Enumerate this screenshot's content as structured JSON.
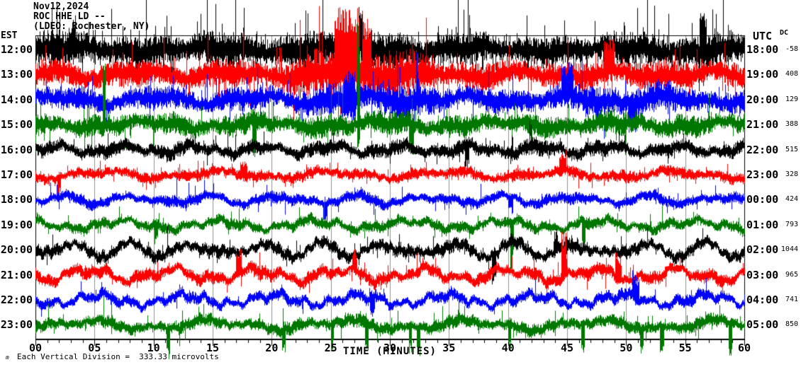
{
  "header": {
    "date": "Nov12,2024",
    "station": "ROC HHE LD --",
    "network": "(LDEO: Rochester, NY)"
  },
  "axes": {
    "left_label": "EST",
    "right_label": "UTC",
    "dc_label": "DC",
    "x_title": "TIME (MINUTES)",
    "x_ticks": [
      "00",
      "05",
      "10",
      "15",
      "20",
      "25",
      "30",
      "35",
      "40",
      "45",
      "50",
      "55",
      "60"
    ]
  },
  "footer": {
    "scale_note": "Each Vertical Division =  333.33 microvolts",
    "watermark": "m"
  },
  "chart_data": {
    "type": "line",
    "subtype": "helicorder-seismogram",
    "title": "ROC HHE LD -- Nov12,2024 (LDEO: Rochester, NY)",
    "xlabel": "TIME (MINUTES)",
    "x_range_minutes": [
      0,
      60
    ],
    "minutes_per_row": 60,
    "grid": "vertical gray lines every 5 minutes",
    "legend_position": "none",
    "microvolts_per_division": 333.33,
    "colors": {
      "grid": "#909090",
      "axis": "#000000",
      "trace_cycle": [
        "#000000",
        "#ff0000",
        "#0000ff",
        "#007700"
      ]
    },
    "rows": [
      {
        "est": "12:00",
        "utc": "18:00",
        "dc": "-58",
        "color": "#000000",
        "seed": 11,
        "amp": 20,
        "wander": 6,
        "spike_p": 0.1,
        "env": [
          1.1,
          1,
          0.95,
          1,
          0.95,
          1.15,
          1.1,
          1,
          0.85,
          0.9,
          1,
          0.95,
          1.05
        ],
        "spikes": [
          {
            "m": 27.5,
            "up": 60,
            "w": 0.2
          },
          {
            "m": 56.5,
            "up": 55,
            "w": 0.3
          },
          {
            "m": 3.2,
            "up": 45,
            "w": 0.2
          }
        ]
      },
      {
        "est": "13:00",
        "utc": "19:00",
        "dc": "408",
        "color": "#ff0000",
        "seed": 22,
        "amp": 16,
        "wander": 7,
        "spike_p": 0.07,
        "env": [
          1,
          1,
          1,
          1.05,
          1.1,
          1.8,
          2.0,
          1.1,
          1,
          1,
          1.2,
          1.05,
          1
        ],
        "spikes": [
          {
            "m": 25.8,
            "up": 95,
            "w": 0.5
          },
          {
            "m": 26.8,
            "up": 100,
            "w": 0.6
          },
          {
            "m": 28,
            "up": 80,
            "w": 0.4
          },
          {
            "m": 48.5,
            "up": 45,
            "w": 0.4
          }
        ]
      },
      {
        "est": "14:00",
        "utc": "20:00",
        "dc": "129",
        "color": "#0000ff",
        "seed": 33,
        "amp": 14,
        "wander": 8,
        "spike_p": 0.05,
        "env": [
          1,
          0.95,
          1,
          1,
          1.05,
          1.35,
          1.5,
          1.15,
          1,
          1.2,
          1.45,
          1.1,
          1
        ],
        "spikes": [
          {
            "m": 26.5,
            "up": 40,
            "dn": 30,
            "w": 0.5
          },
          {
            "m": 45,
            "up": 45,
            "w": 0.5
          },
          {
            "m": 50.5,
            "dn": 45,
            "w": 0.4
          }
        ]
      },
      {
        "est": "15:00",
        "utc": "21:00",
        "dc": "388",
        "color": "#007700",
        "seed": 44,
        "amp": 13,
        "wander": 7,
        "spike_p": 0.05,
        "env": [
          1,
          1,
          1,
          1.05,
          1,
          1.1,
          1.15,
          1,
          0.95,
          1,
          1.1,
          1,
          1
        ],
        "spikes": [
          {
            "m": 5.8,
            "up": 120,
            "w": 0.12
          },
          {
            "m": 18.5,
            "dn": 55,
            "w": 0.2
          },
          {
            "m": 27.3,
            "up": 175,
            "dn": 40,
            "w": 0.12
          },
          {
            "m": 31.8,
            "dn": 45,
            "w": 0.2
          }
        ]
      },
      {
        "est": "16:00",
        "utc": "22:00",
        "dc": "515",
        "color": "#000000",
        "seed": 55,
        "amp": 9,
        "wander": 8,
        "spike_p": 0.04,
        "env": [
          1,
          1,
          1.05,
          1,
          0.95,
          1,
          1.05,
          1,
          1.1,
          1.15,
          1,
          0.95,
          1
        ],
        "spikes": [
          {
            "m": 36.5,
            "dn": 35,
            "w": 0.2
          }
        ]
      },
      {
        "est": "17:00",
        "utc": "23:00",
        "dc": "328",
        "color": "#ff0000",
        "seed": 66,
        "amp": 7,
        "wander": 7,
        "spike_p": 0.035,
        "env": [
          1,
          1,
          1,
          1.05,
          1,
          1.05,
          1,
          1,
          1.05,
          1,
          1.1,
          1,
          1
        ],
        "spikes": [
          {
            "m": 2,
            "dn": 30,
            "w": 0.15
          },
          {
            "m": 17.6,
            "up": 22,
            "w": 0.3
          },
          {
            "m": 44.6,
            "up": 28,
            "w": 0.3
          }
        ]
      },
      {
        "est": "18:00",
        "utc": "00:00",
        "dc": "424",
        "color": "#0000ff",
        "seed": 77,
        "amp": 7,
        "wander": 8,
        "spike_p": 0.035,
        "env": [
          1,
          1,
          1,
          1,
          1.05,
          1.1,
          1,
          0.95,
          1,
          1.05,
          1,
          1,
          1
        ],
        "spikes": [
          {
            "m": 24.5,
            "dn": 30,
            "w": 0.2
          },
          {
            "m": 40.2,
            "dn": 25,
            "w": 0.2
          }
        ]
      },
      {
        "est": "19:00",
        "utc": "01:00",
        "dc": "793",
        "color": "#007700",
        "seed": 88,
        "amp": 7,
        "wander": 9,
        "spike_p": 0.035,
        "env": [
          1,
          1,
          0.95,
          1,
          1,
          1.05,
          1,
          1,
          1.05,
          1,
          1,
          0.95,
          1
        ],
        "spikes": [
          {
            "m": 10.2,
            "dn": 30,
            "w": 0.15
          },
          {
            "m": 40.3,
            "dn": 70,
            "w": 0.15
          },
          {
            "m": 46.4,
            "dn": 40,
            "w": 0.15
          }
        ]
      },
      {
        "est": "20:00",
        "utc": "02:00",
        "dc": "1044",
        "color": "#000000",
        "seed": 99,
        "amp": 8,
        "wander": 13,
        "spike_p": 0.03,
        "env": [
          1,
          1,
          1,
          1.05,
          1,
          1,
          1.05,
          1.1,
          1,
          1.05,
          1,
          0.95,
          1
        ],
        "spikes": [
          {
            "m": 38.8,
            "dn": 45,
            "w": 0.2
          },
          {
            "m": 44,
            "up": 30,
            "w": 0.2
          }
        ]
      },
      {
        "est": "21:00",
        "utc": "03:00",
        "dc": "965",
        "color": "#ff0000",
        "seed": 110,
        "amp": 8,
        "wander": 12,
        "spike_p": 0.03,
        "env": [
          1,
          1.05,
          1,
          1,
          1.1,
          1,
          1.05,
          1,
          1,
          1.15,
          1,
          1,
          1
        ],
        "spikes": [
          {
            "m": 17.2,
            "up": 35,
            "w": 0.25
          },
          {
            "m": 27,
            "up": 30,
            "w": 0.2
          },
          {
            "m": 44.7,
            "up": 70,
            "w": 0.2
          },
          {
            "m": 49.3,
            "up": 40,
            "w": 0.25
          }
        ]
      },
      {
        "est": "22:00",
        "utc": "04:00",
        "dc": "741",
        "color": "#0000ff",
        "seed": 121,
        "amp": 7,
        "wander": 11,
        "spike_p": 0.03,
        "env": [
          1,
          1,
          1.05,
          1,
          1,
          1.05,
          1,
          1,
          1.05,
          1,
          1.1,
          1.05,
          1
        ],
        "spikes": [
          {
            "m": 28.5,
            "dn": 30,
            "w": 0.2
          },
          {
            "m": 50.8,
            "up": 35,
            "w": 0.3
          }
        ]
      },
      {
        "est": "23:00",
        "utc": "05:00",
        "dc": "850",
        "color": "#007700",
        "seed": 132,
        "amp": 8,
        "wander": 9,
        "spike_p": 0.035,
        "env": [
          1,
          1,
          1,
          1.05,
          1,
          1.1,
          1.05,
          1,
          1,
          1.05,
          1,
          1,
          1
        ],
        "spikes": [
          {
            "m": 11.2,
            "dn": 45,
            "w": 0.15
          },
          {
            "m": 21,
            "dn": 35,
            "w": 0.15
          },
          {
            "m": 25.1,
            "dn": 40,
            "w": 0.12
          },
          {
            "m": 28,
            "dn": 45,
            "w": 0.15
          },
          {
            "m": 31.7,
            "dn": 40,
            "w": 0.12
          },
          {
            "m": 32.4,
            "dn": 42,
            "w": 0.12
          },
          {
            "m": 40.1,
            "dn": 40,
            "w": 0.12
          },
          {
            "m": 46.3,
            "dn": 50,
            "w": 0.15
          },
          {
            "m": 51.3,
            "dn": 35,
            "w": 0.12
          },
          {
            "m": 53,
            "dn": 40,
            "w": 0.2
          },
          {
            "m": 58.8,
            "dn": 45,
            "w": 0.15
          }
        ]
      }
    ]
  }
}
